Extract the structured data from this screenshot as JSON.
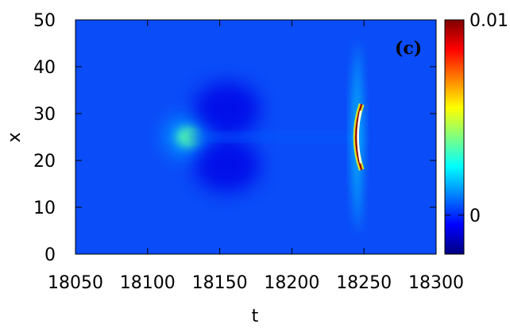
{
  "chart_data": {
    "type": "heatmap",
    "panel_label": "(c)",
    "xlabel": "t",
    "ylabel": "x",
    "xlim": [
      18050,
      18300
    ],
    "ylim": [
      0,
      50
    ],
    "x_ticks": [
      18050,
      18100,
      18150,
      18200,
      18250,
      18300
    ],
    "y_ticks": [
      0,
      10,
      20,
      30,
      40,
      50
    ],
    "colorbar": {
      "range": [
        -0.002,
        0.01
      ],
      "tick_labels": [
        "0.01",
        "0"
      ],
      "tick_values": [
        0.01,
        0
      ],
      "colormap": "jet"
    },
    "background_value": 0,
    "features": [
      {
        "kind": "blob",
        "t": 18128,
        "x": 25,
        "value": 0.0035
      },
      {
        "kind": "trough",
        "t": 18155,
        "x": 31,
        "value": -0.0008
      },
      {
        "kind": "trough",
        "t": 18155,
        "x": 19,
        "value": -0.0008
      },
      {
        "kind": "wake",
        "t": 18185,
        "x": 25,
        "value": 0.0006
      },
      {
        "kind": "shock",
        "t": 18245,
        "x": 25,
        "value": 0.01
      }
    ]
  }
}
